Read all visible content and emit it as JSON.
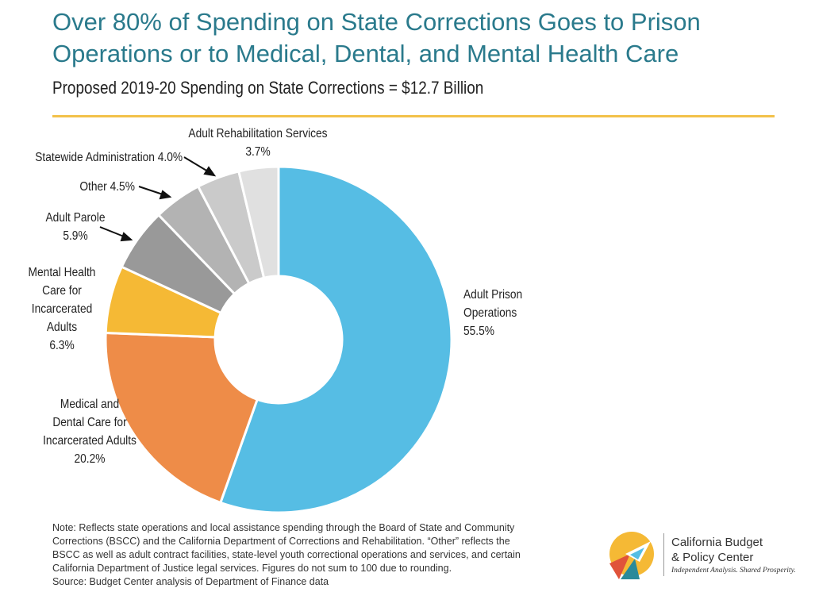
{
  "header": {
    "title_line1": "Over 80% of Spending on State Corrections Goes to Prison",
    "title_line2": "Operations or to Medical, Dental, and Mental Health Care",
    "subtitle": "Proposed 2019-20 Spending on State Corrections = $12.7 Billion"
  },
  "chart_data": {
    "type": "pie",
    "donut": true,
    "start": "12 o'clock",
    "direction": "clockwise",
    "slices": [
      {
        "key": "prison",
        "label_lines": [
          "Adult Prison",
          "Operations"
        ],
        "value_label": "55.5%",
        "value": 55.5,
        "color": "#56bde4"
      },
      {
        "key": "medical",
        "label_lines": [
          "Medical and",
          "Dental Care for",
          "Incarcerated Adults"
        ],
        "value_label": "20.2%",
        "value": 20.2,
        "color": "#ee8c48"
      },
      {
        "key": "mental",
        "label_lines": [
          "Mental Health",
          "Care for",
          "Incarcerated",
          "Adults"
        ],
        "value_label": "6.3%",
        "value": 6.3,
        "color": "#f5b935"
      },
      {
        "key": "parole",
        "label_lines": [
          "Adult Parole"
        ],
        "value_label": "5.9%",
        "value": 5.9,
        "color": "#999999"
      },
      {
        "key": "other",
        "label_lines": [
          "Other 4.5%"
        ],
        "value_label": "",
        "value": 4.5,
        "color": "#b3b3b3"
      },
      {
        "key": "admin",
        "label_lines": [
          "Statewide Administration 4.0%"
        ],
        "value_label": "",
        "value": 4.0,
        "color": "#cacaca"
      },
      {
        "key": "rehab",
        "label_lines": [
          "Adult Rehabilitation Services"
        ],
        "value_label": "3.7%",
        "value": 3.7,
        "color": "#e0e0e0"
      }
    ]
  },
  "note": {
    "line1": "Note: Reflects state operations and local assistance spending through the Board of State and Community",
    "line2": "Corrections (BSCC) and the California Department of Corrections and Rehabilitation. “Other” reflects the",
    "line3": "BSCC as well as adult contract facilities, state-level youth correctional operations and services, and certain",
    "line4": "California Department of Justice legal services. Figures do not sum to 100 due to rounding.",
    "source": "Source: Budget Center analysis of Department of Finance data"
  },
  "logo": {
    "line1": "California Budget",
    "line2": "& Policy Center",
    "tagline": "Independent Analysis. Shared Prosperity.",
    "colors": {
      "yellow": "#f5b935",
      "red": "#e0533a",
      "teal": "#2a8a9a",
      "blue": "#56bde4"
    }
  }
}
